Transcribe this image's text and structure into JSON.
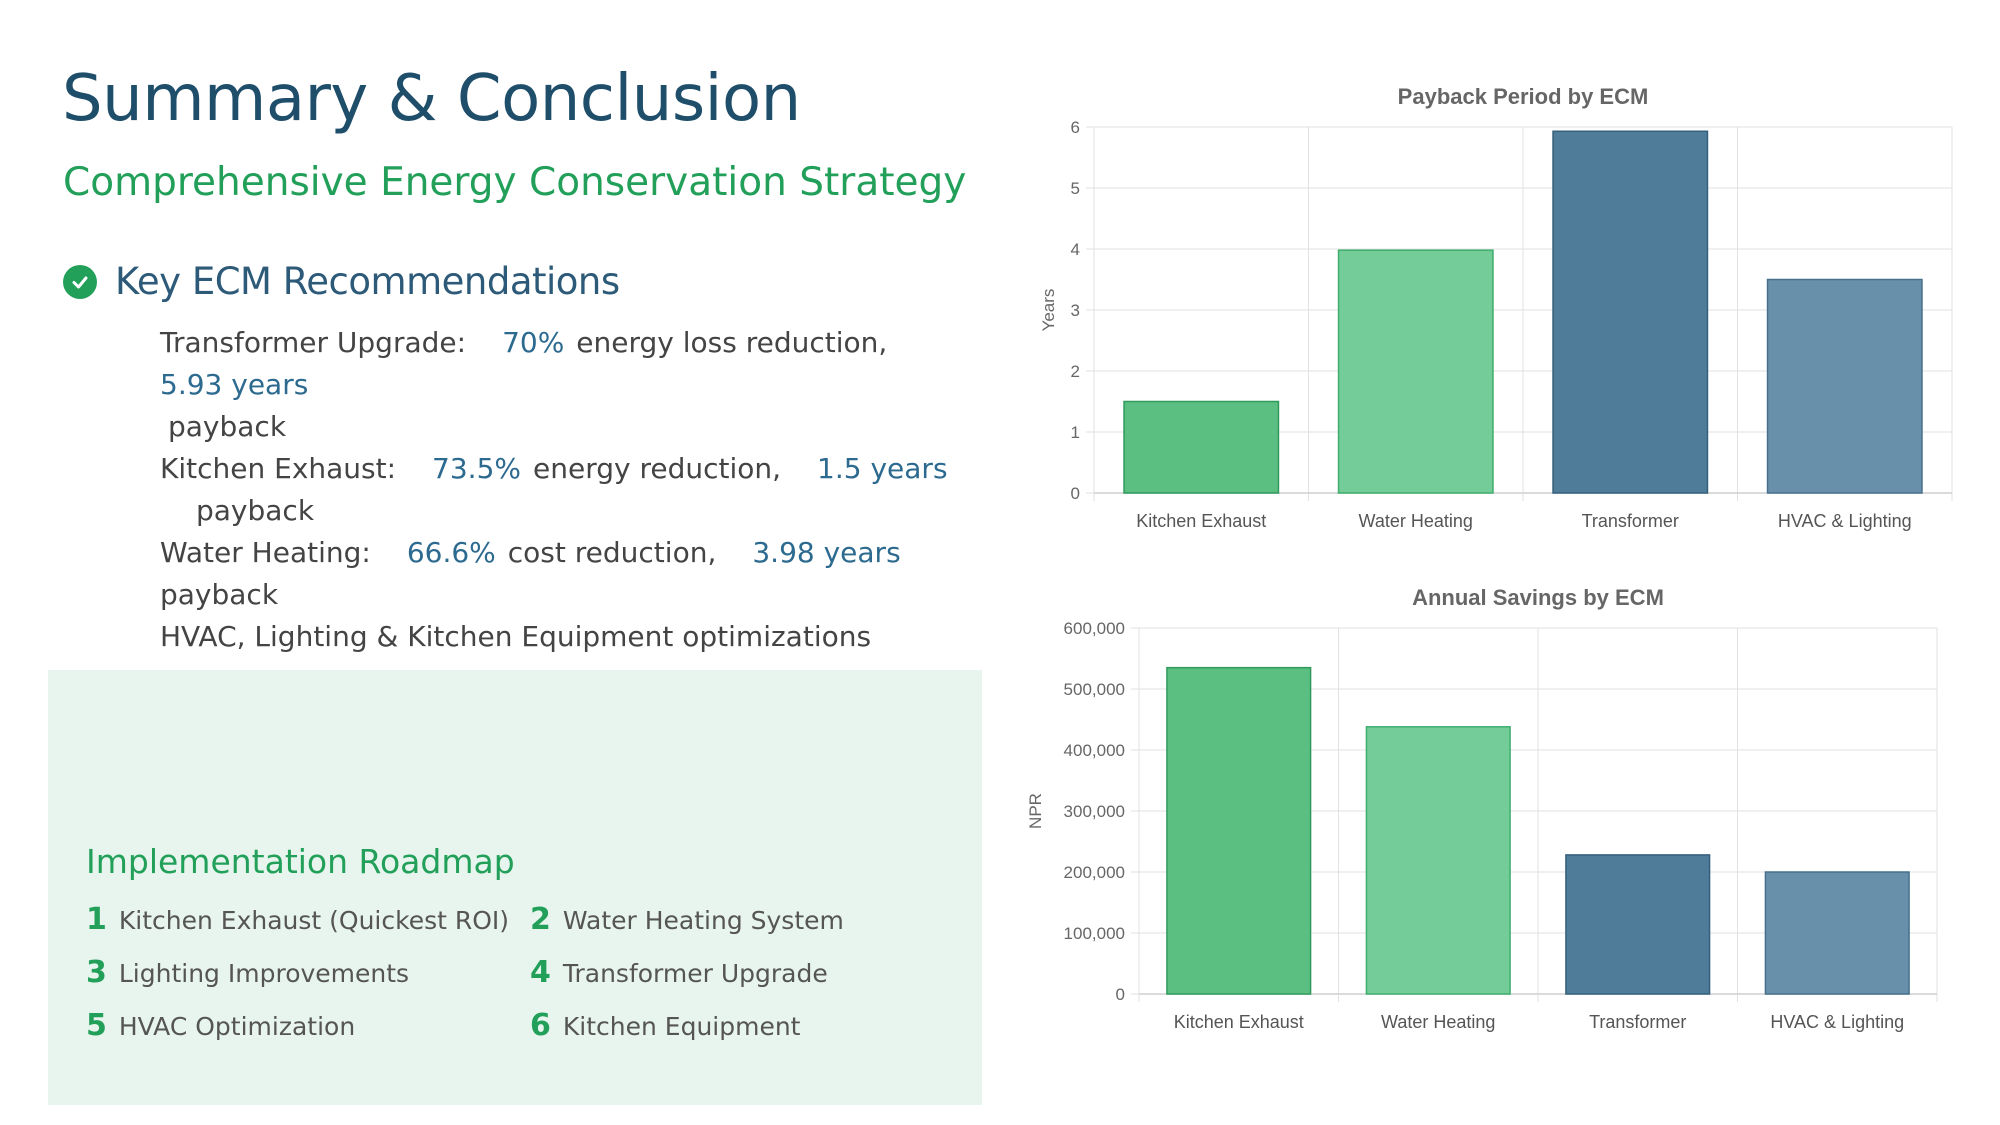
{
  "header": {
    "title": "Summary & Conclusion",
    "subtitle": "Comprehensive Energy Conservation Strategy"
  },
  "recommendations": {
    "heading": "Key ECM Recommendations",
    "icon": "check-circle-icon",
    "items": [
      {
        "label": "Transformer Upgrade:",
        "value1": "70%",
        "mid": "energy loss reduction,",
        "value2": "5.93 years",
        "tail": "payback"
      },
      {
        "label": "Kitchen Exhaust:",
        "value1": "73.5%",
        "mid": "energy reduction,",
        "value2": "1.5 years",
        "tail": "payback"
      },
      {
        "label": "Water Heating:",
        "value1": "66.6%",
        "mid": "cost reduction,",
        "value2": "3.98 years",
        "tail": "payback"
      }
    ],
    "last": "HVAC, Lighting & Kitchen Equipment optimizations"
  },
  "roadmap": {
    "title": "Implementation Roadmap",
    "steps": [
      {
        "num": "1",
        "label": "Kitchen Exhaust (Quickest ROI)"
      },
      {
        "num": "2",
        "label": "Water Heating System"
      },
      {
        "num": "3",
        "label": "Lighting Improvements"
      },
      {
        "num": "4",
        "label": "Transformer Upgrade"
      },
      {
        "num": "5",
        "label": "HVAC Optimization"
      },
      {
        "num": "6",
        "label": "Kitchen Equipment"
      }
    ]
  },
  "colors": {
    "bar_green": "#5bbf82",
    "bar_lightgreen": "#74cc98",
    "bar_darkblue": "#4f7c99",
    "bar_blue": "#6990ab",
    "accent_green": "#22a05a",
    "title_blue": "#1f4e6b"
  },
  "chart_data": [
    {
      "type": "bar",
      "title": "Payback Period by ECM",
      "categories": [
        "Kitchen Exhaust",
        "Water Heating",
        "Transformer",
        "HVAC & Lighting"
      ],
      "values": [
        1.5,
        3.98,
        5.93,
        3.5
      ],
      "xlabel": "",
      "ylabel": "Years",
      "ylim": [
        0,
        6
      ],
      "yticks": [
        "0",
        "1",
        "2",
        "3",
        "4",
        "5",
        "6"
      ],
      "grid": true
    },
    {
      "type": "bar",
      "title": "Annual Savings by ECM",
      "categories": [
        "Kitchen Exhaust",
        "Water Heating",
        "Transformer",
        "HVAC & Lighting"
      ],
      "values": [
        535000,
        438000,
        228000,
        200000
      ],
      "xlabel": "",
      "ylabel": "NPR",
      "ylim": [
        0,
        600000
      ],
      "yticks": [
        "0",
        "100,000",
        "200,000",
        "300,000",
        "400,000",
        "500,000",
        "600,000"
      ],
      "grid": true
    }
  ]
}
